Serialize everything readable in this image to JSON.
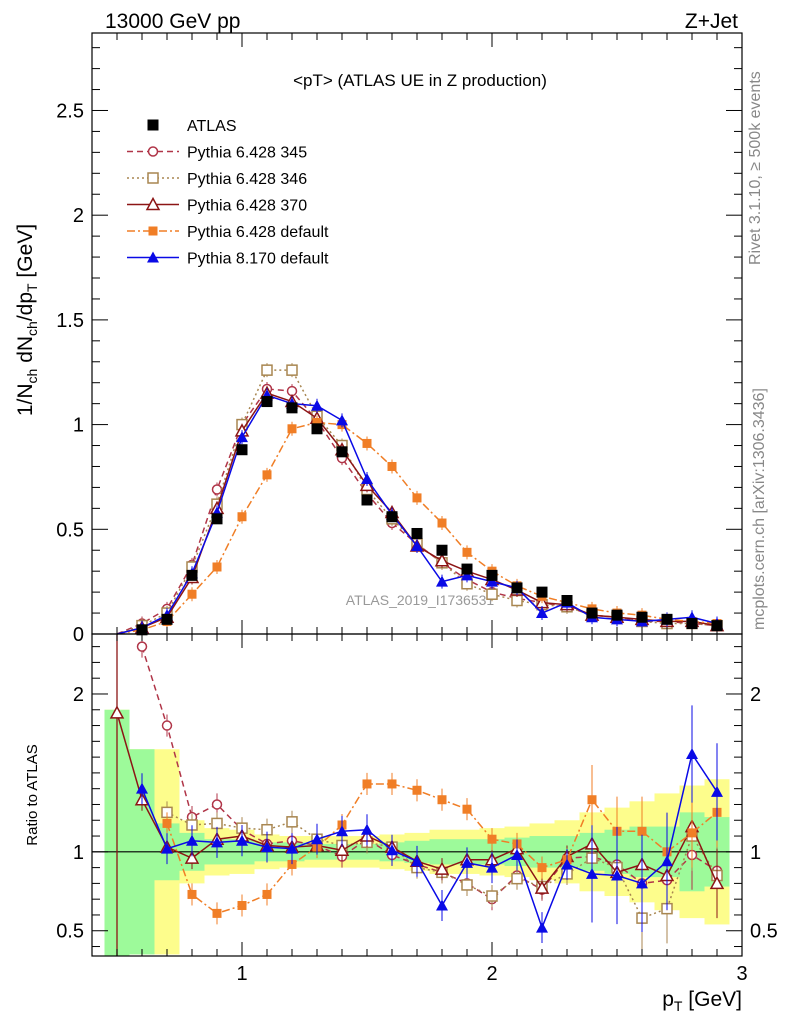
{
  "chart_data": {
    "type": "scatter",
    "header_left": "13000 GeV pp",
    "header_right": "Z+Jet",
    "title": "<pT> (ATLAS UE in Z production)",
    "side_label_top": "Rivet 3.1.10, ≥ 500k events",
    "side_label_bottom": "mcplots.cern.ch [arXiv:1306.3436]",
    "watermark": "ATLAS_2019_I1736531",
    "xlabel": "p_T [GeV]",
    "ylabel_main": "1/N_ch dN_ch/dp_T [GeV]",
    "ylabel_ratio": "Ratio to ATLAS",
    "xlim": [
      0.4,
      3.0
    ],
    "ylim_main": [
      0,
      2.87
    ],
    "ylim_ratio": [
      0.34,
      2.38
    ],
    "x_ticks": [
      1,
      2,
      3
    ],
    "y_ticks_main": [
      0,
      0.5,
      1,
      1.5,
      2,
      2.5
    ],
    "y_ticks_ratio": [
      0.5,
      1,
      2
    ],
    "x": [
      0.5,
      0.6,
      0.7,
      0.8,
      0.9,
      1.0,
      1.1,
      1.2,
      1.3,
      1.4,
      1.5,
      1.6,
      1.7,
      1.8,
      1.9,
      2.0,
      2.1,
      2.2,
      2.3,
      2.4,
      2.5,
      2.6,
      2.7,
      2.8,
      2.9
    ],
    "legend": [
      {
        "key": "atlas",
        "label": "ATLAS"
      },
      {
        "key": "p345",
        "label": "Pythia 6.428 345"
      },
      {
        "key": "p346",
        "label": "Pythia 6.428 346"
      },
      {
        "key": "p370",
        "label": "Pythia 6.428 370"
      },
      {
        "key": "p6def",
        "label": "Pythia 6.428 default"
      },
      {
        "key": "p8def",
        "label": "Pythia 8.170 default"
      }
    ],
    "data": {
      "name": "ATLAS",
      "values": [
        0.0,
        0.02,
        0.07,
        0.28,
        0.55,
        0.88,
        1.11,
        1.08,
        0.98,
        0.87,
        0.64,
        0.56,
        0.48,
        0.4,
        0.31,
        0.28,
        0.22,
        0.2,
        0.16,
        0.1,
        0.09,
        0.08,
        0.07,
        0.05,
        0.04
      ]
    },
    "bands": {
      "stat_green_halfwidth": [
        0.9,
        0.65,
        0.18,
        0.12,
        0.08,
        0.08,
        0.06,
        0.06,
        0.05,
        0.05,
        0.05,
        0.06,
        0.07,
        0.08,
        0.08,
        0.08,
        0.09,
        0.1,
        0.1,
        0.12,
        0.14,
        0.16,
        0.16,
        0.25,
        0.22
      ],
      "total_yellow_halfwidth": [
        0.9,
        0.65,
        0.65,
        0.2,
        0.15,
        0.14,
        0.11,
        0.1,
        0.1,
        0.1,
        0.1,
        0.11,
        0.12,
        0.14,
        0.14,
        0.15,
        0.16,
        0.18,
        0.2,
        0.25,
        0.28,
        0.32,
        0.37,
        0.42,
        0.46
      ]
    },
    "series": [
      {
        "key": "p345",
        "name": "Pythia 6.428 345",
        "color": "#b03548",
        "marker": "circle-open",
        "dash": "6,4",
        "values": [
          0.0,
          0.05,
          0.12,
          0.33,
          0.69,
          1.0,
          1.17,
          1.16,
          1.02,
          0.84,
          0.67,
          0.53,
          0.43,
          0.34,
          0.26,
          0.2,
          0.17,
          0.15,
          0.13,
          0.09,
          0.08,
          0.06,
          0.06,
          0.05,
          0.04
        ],
        "ratio": [
          null,
          2.3,
          1.8,
          1.22,
          1.3,
          1.14,
          1.05,
          1.07,
          1.04,
          0.97,
          1.08,
          0.98,
          0.92,
          0.87,
          0.8,
          0.7,
          0.85,
          0.76,
          0.96,
          0.97,
          0.92,
          0.8,
          0.82,
          0.98,
          0.88
        ]
      },
      {
        "key": "p346",
        "name": "Pythia 6.428 346",
        "color": "#a88650",
        "marker": "square-open",
        "dash": "2,3",
        "values": [
          0.0,
          0.04,
          0.1,
          0.32,
          0.62,
          1.0,
          1.26,
          1.26,
          1.04,
          0.9,
          0.69,
          0.55,
          0.43,
          0.34,
          0.24,
          0.19,
          0.16,
          0.14,
          0.13,
          0.09,
          0.08,
          0.06,
          0.05,
          0.05,
          0.04
        ],
        "ratio": [
          null,
          null,
          1.25,
          1.17,
          1.18,
          1.15,
          1.14,
          1.19,
          1.08,
          1.04,
          1.06,
          1.03,
          0.9,
          0.87,
          0.79,
          0.72,
          0.83,
          0.78,
          0.86,
          0.96,
          0.9,
          0.58,
          0.64,
          1.1,
          0.85
        ]
      },
      {
        "key": "p370",
        "name": "Pythia 6.428 370",
        "color": "#8c1515",
        "marker": "triangle-open",
        "dash": "",
        "values": [
          0.0,
          0.03,
          0.08,
          0.27,
          0.6,
          0.97,
          1.15,
          1.11,
          1.03,
          0.88,
          0.71,
          0.58,
          0.42,
          0.35,
          0.3,
          0.26,
          0.21,
          0.15,
          0.14,
          0.09,
          0.08,
          0.07,
          0.06,
          0.06,
          0.04
        ],
        "ratio": [
          1.88,
          1.33,
          1.03,
          0.96,
          1.08,
          1.1,
          1.04,
          1.03,
          1.04,
          1.01,
          1.1,
          1.03,
          0.94,
          0.89,
          0.95,
          0.95,
          1.02,
          0.77,
          0.97,
          1.05,
          0.87,
          0.92,
          0.85,
          1.16,
          0.8
        ]
      },
      {
        "key": "p6def",
        "name": "Pythia 6.428 default",
        "color": "#f07e26",
        "marker": "square-filled",
        "dash": "8,3,2,3",
        "values": [
          0.0,
          0.02,
          0.06,
          0.19,
          0.32,
          0.56,
          0.76,
          0.98,
          1.01,
          1.0,
          0.91,
          0.8,
          0.65,
          0.53,
          0.39,
          0.3,
          0.23,
          0.18,
          0.15,
          0.12,
          0.1,
          0.09,
          0.07,
          0.06,
          0.05
        ],
        "ratio": [
          null,
          null,
          1.18,
          0.73,
          0.61,
          0.66,
          0.73,
          0.92,
          1.03,
          1.17,
          1.43,
          1.43,
          1.39,
          1.33,
          1.27,
          1.08,
          1.05,
          0.9,
          0.95,
          1.33,
          1.13,
          1.13,
          1.0,
          1.12,
          1.25
        ]
      },
      {
        "key": "p8def",
        "name": "Pythia 8.170 default",
        "color": "#0a0ae6",
        "marker": "triangle-filled",
        "dash": "",
        "values": [
          0.0,
          0.03,
          0.09,
          0.29,
          0.58,
          0.94,
          1.14,
          1.1,
          1.09,
          1.02,
          0.74,
          0.57,
          0.42,
          0.25,
          0.28,
          0.25,
          0.22,
          0.1,
          0.15,
          0.08,
          0.07,
          0.06,
          0.07,
          0.08,
          0.05
        ],
        "ratio": [
          null,
          1.4,
          1.02,
          1.07,
          1.06,
          1.07,
          1.03,
          1.02,
          1.08,
          1.13,
          1.14,
          1.01,
          0.94,
          0.66,
          0.93,
          0.9,
          0.98,
          0.52,
          0.92,
          0.86,
          0.85,
          0.8,
          0.94,
          1.62,
          1.38
        ]
      }
    ]
  }
}
